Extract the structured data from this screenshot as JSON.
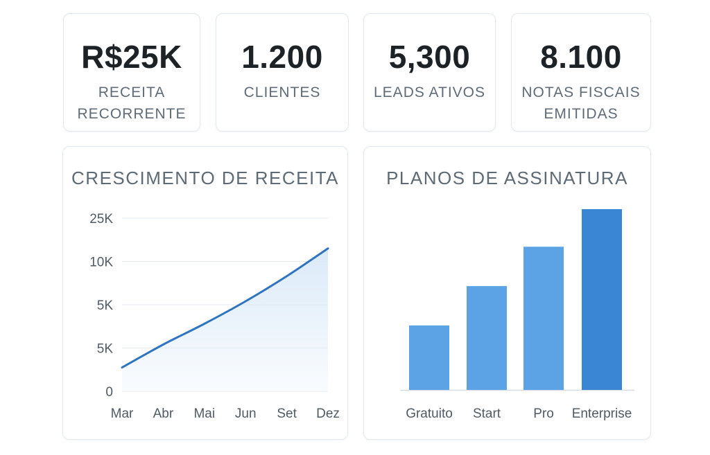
{
  "kpis": [
    {
      "value": "R$25K",
      "label": "RECEITA RECORRENTE"
    },
    {
      "value": "1.200",
      "label": "CLIENTES"
    },
    {
      "value": "5,300",
      "label": "LEADS ATIVOS"
    },
    {
      "value": "8.100",
      "label": "NOTAS FISCAIS EMITIDAS"
    }
  ],
  "colors": {
    "line": "#2f74c0",
    "bar": "#5ba3e4",
    "bar_highlight": "#3a86d4",
    "area": "#dbeaf8"
  },
  "chart_data": [
    {
      "type": "area",
      "title": "CRESCIMENTO DE RECEITA",
      "categories": [
        "Mar",
        "Abr",
        "Mai",
        "Jun",
        "Set",
        "Dez"
      ],
      "y_tick_labels": [
        "0",
        "5K",
        "5K",
        "10K",
        "25K"
      ],
      "y_tick_levels": [
        0,
        1,
        2,
        3,
        4
      ],
      "ylim": [
        0,
        4
      ],
      "points": [
        {
          "x": 0,
          "y": 0.55
        },
        {
          "x": 1,
          "y": 1.08
        },
        {
          "x": 2,
          "y": 1.56
        },
        {
          "x": 3,
          "y": 2.08
        },
        {
          "x": 4,
          "y": 2.66
        },
        {
          "x": 5,
          "y": 3.3
        }
      ],
      "grid": true,
      "legend": "none"
    },
    {
      "type": "bar",
      "title": "PLANOS DE ASSINATURA",
      "categories": [
        "Gratuito",
        "Start",
        "Pro",
        "Enterprise"
      ],
      "values": [
        36,
        58,
        80,
        101
      ],
      "ylim": [
        0,
        101
      ],
      "highlight_index": 3,
      "grid": false,
      "legend": "none"
    }
  ]
}
